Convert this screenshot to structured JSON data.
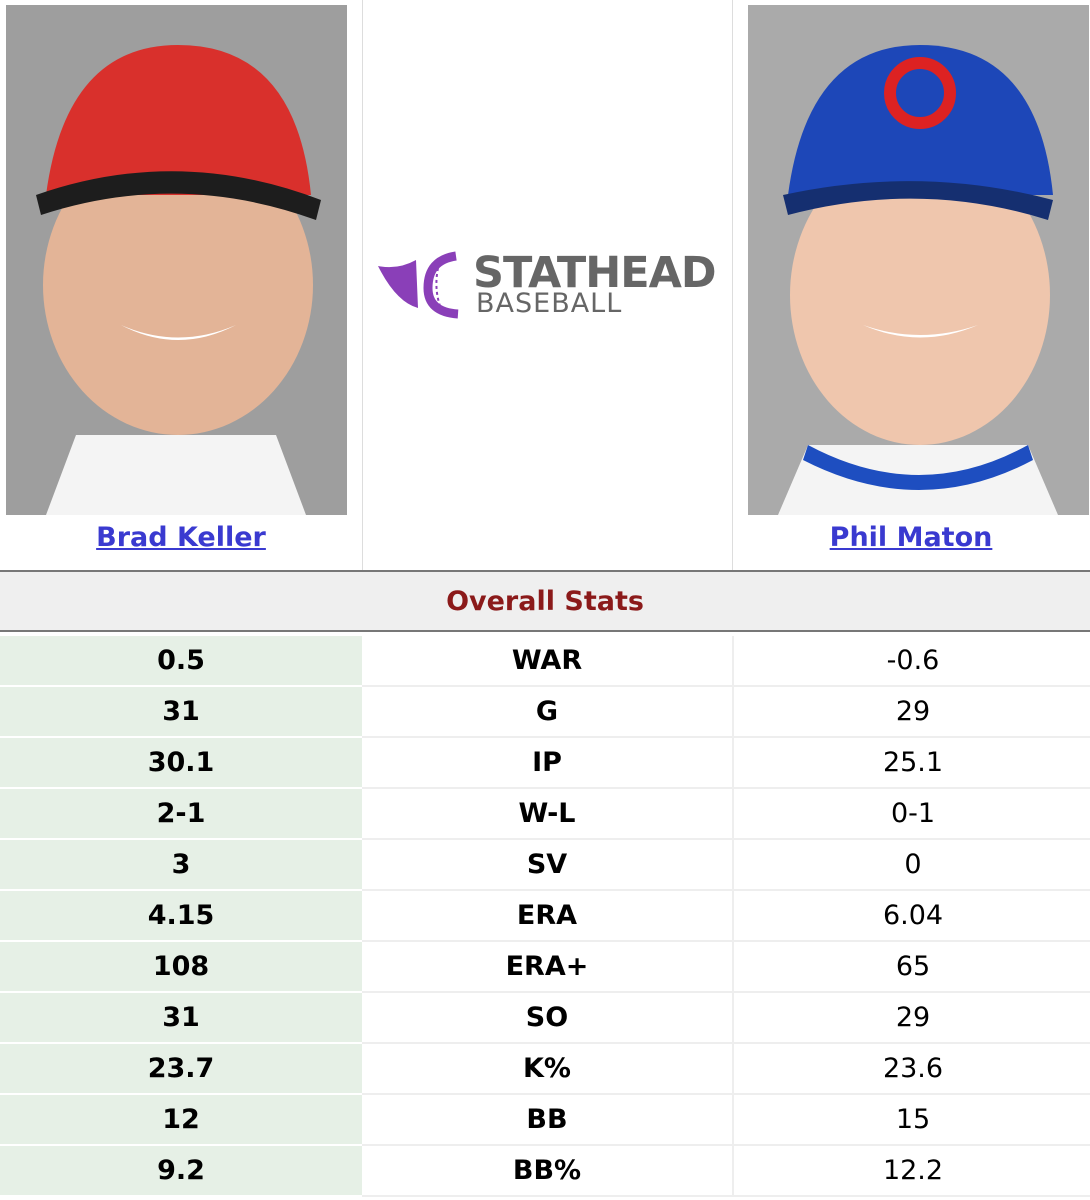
{
  "players": [
    {
      "name": "Brad Keller"
    },
    {
      "name": "Phil Maton"
    }
  ],
  "logo": {
    "brand": "STATHEAD",
    "sub": "BASEBALL"
  },
  "section_title": "Overall Stats",
  "rows": [
    {
      "left": "0.5",
      "stat": "WAR",
      "right": "-0.6"
    },
    {
      "left": "31",
      "stat": "G",
      "right": "29"
    },
    {
      "left": "30.1",
      "stat": "IP",
      "right": "25.1"
    },
    {
      "left": "2-1",
      "stat": "W-L",
      "right": "0-1"
    },
    {
      "left": "3",
      "stat": "SV",
      "right": "0"
    },
    {
      "left": "4.15",
      "stat": "ERA",
      "right": "6.04"
    },
    {
      "left": "108",
      "stat": "ERA+",
      "right": "65"
    },
    {
      "left": "31",
      "stat": "SO",
      "right": "29"
    },
    {
      "left": "23.7",
      "stat": "K%",
      "right": "23.6"
    },
    {
      "left": "12",
      "stat": "BB",
      "right": "15"
    },
    {
      "left": "9.2",
      "stat": "BB%",
      "right": "12.2"
    }
  ]
}
